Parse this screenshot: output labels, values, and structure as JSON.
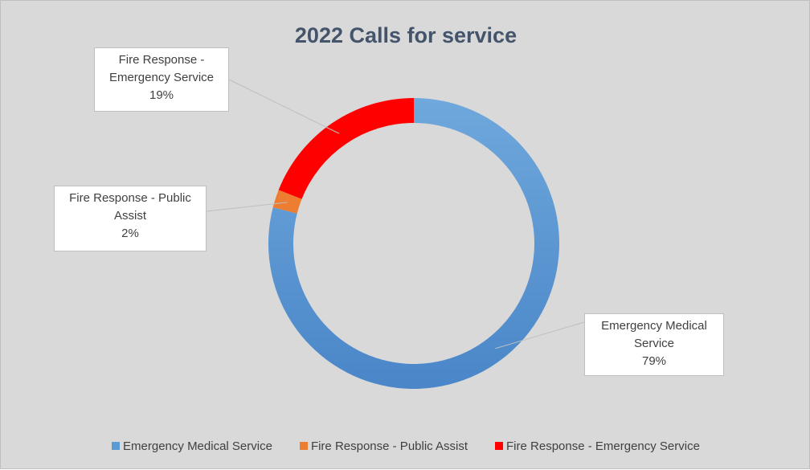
{
  "chart_data": {
    "type": "pie",
    "style": "donut",
    "title": "2022 Calls for service",
    "series": [
      {
        "name": "Emergency Medical Service",
        "value": 79,
        "label": "79%",
        "color": "#5b9bd5",
        "label_lines": [
          "Emergency Medical",
          "Service",
          "79%"
        ]
      },
      {
        "name": "Fire Response - Public Assist",
        "value": 2,
        "label": "2%",
        "color": "#ed7d31",
        "label_lines": [
          "Fire Response - Public",
          "Assist",
          "2%"
        ]
      },
      {
        "name": "Fire Response - Emergency Service",
        "value": 19,
        "label": "19%",
        "color": "#ff0000",
        "label_lines": [
          "Fire Response -",
          "Emergency Service",
          "19%"
        ]
      }
    ],
    "legend_position": "bottom",
    "background_color": "#d9d9d9"
  }
}
